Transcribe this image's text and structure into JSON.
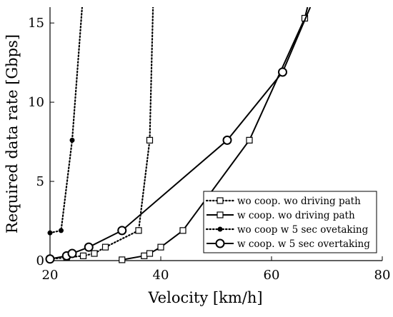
{
  "chart_data": {
    "type": "line",
    "title": "",
    "xlabel": "Velocity [km/h]",
    "ylabel": "Required data rate [Gbps]",
    "xlim": [
      20,
      80
    ],
    "ylim": [
      0,
      16
    ],
    "xticks": [
      20,
      40,
      60,
      80
    ],
    "yticks": [
      0,
      5,
      10,
      15
    ],
    "grid": false,
    "legend_position": "lower-right",
    "series": [
      {
        "name": "wo coop. wo driving path",
        "line": "dotted",
        "marker": "square",
        "color": "#000000",
        "x": [
          20,
          23,
          26,
          28,
          30,
          36,
          38,
          38.6
        ],
        "y": [
          0.1,
          0.2,
          0.3,
          0.45,
          0.85,
          1.9,
          7.6,
          16
        ]
      },
      {
        "name": "w coop. wo driving path",
        "line": "solid",
        "marker": "square",
        "color": "#000000",
        "x": [
          33,
          37,
          38,
          40,
          44,
          56,
          66,
          66.5
        ],
        "y": [
          0.05,
          0.3,
          0.45,
          0.85,
          1.9,
          7.6,
          15.3,
          16
        ]
      },
      {
        "name": "wo coop w 5 sec ovetaking",
        "line": "dotted",
        "marker": "dot",
        "color": "#000000",
        "x": [
          20,
          22,
          24,
          25.8
        ],
        "y": [
          1.75,
          1.9,
          7.6,
          16
        ]
      },
      {
        "name": "w coop. w 5 sec overtaking",
        "line": "solid",
        "marker": "circle",
        "color": "#000000",
        "x": [
          20,
          23,
          24,
          27,
          33,
          52,
          62,
          67
        ],
        "y": [
          0.1,
          0.3,
          0.45,
          0.85,
          1.9,
          7.6,
          11.9,
          16
        ]
      }
    ]
  }
}
